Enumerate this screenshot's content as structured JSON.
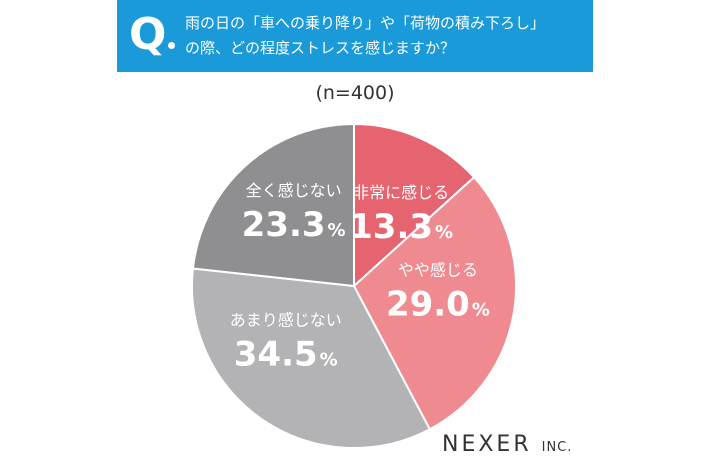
{
  "header": {
    "q_mark": "Q",
    "question_line1": "雨の日の「車への乗り降り」や「荷物の積み下ろし」",
    "question_line2": "の際、どの程度ストレスを感じますか？"
  },
  "sample_size": "(n=400)",
  "brand": {
    "name": "NEXER",
    "suffix": "INC."
  },
  "colors": {
    "header_bg": "#1a9ad8",
    "very": "#e56470",
    "somewhat": "#ef8b90",
    "not_much": "#b3b3b5",
    "not_at_all": "#8f8f91"
  },
  "chart_data": {
    "type": "pie",
    "title": "",
    "slices": [
      {
        "label": "非常に感じる",
        "value": 13.3,
        "display": "13.3",
        "unit": "%",
        "color": "#e56470"
      },
      {
        "label": "やや感じる",
        "value": 29.0,
        "display": "29.0",
        "unit": "%",
        "color": "#ef8b90"
      },
      {
        "label": "あまり感じない",
        "value": 34.5,
        "display": "34.5",
        "unit": "%",
        "color": "#b3b3b5"
      },
      {
        "label": "全く感じない",
        "value": 23.3,
        "display": "23.3",
        "unit": "%",
        "color": "#8f8f91"
      }
    ]
  }
}
